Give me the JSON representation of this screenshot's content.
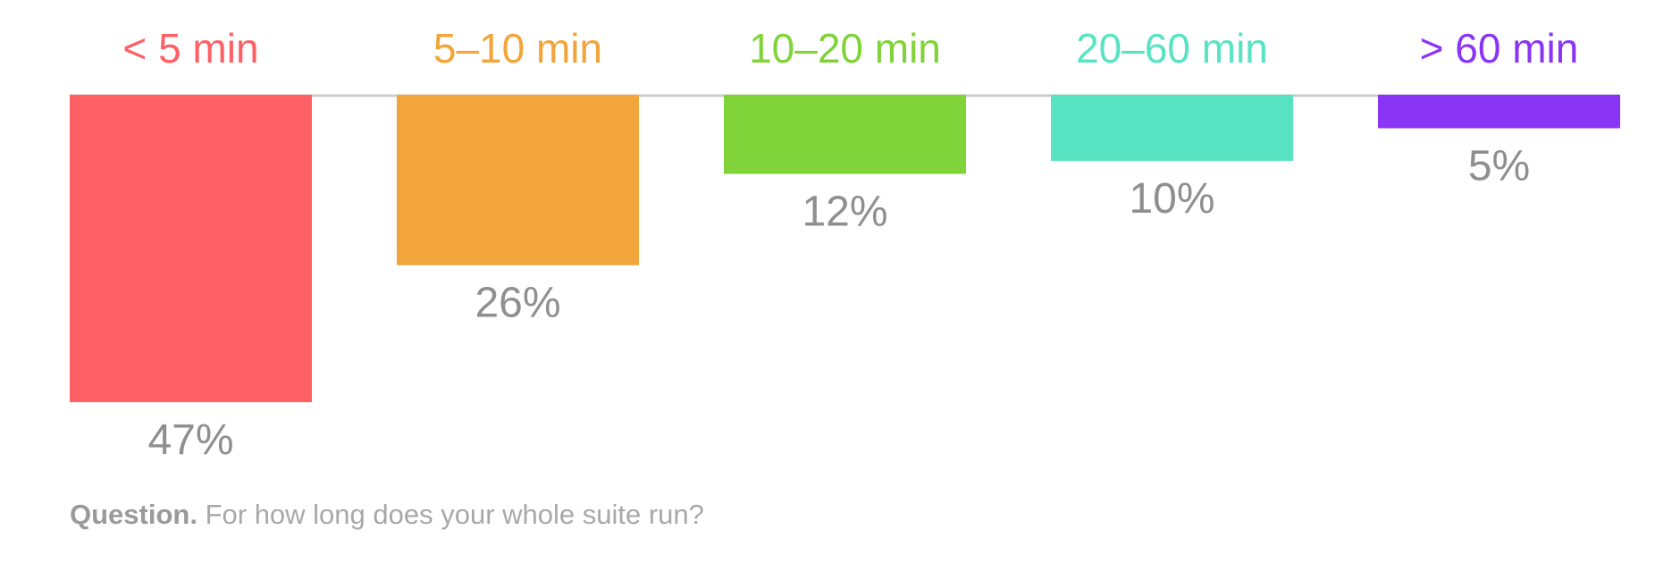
{
  "chart_data": {
    "type": "bar",
    "orientation": "vertical-downward",
    "categories": [
      "< 5 min",
      "5–10 min",
      "10–20 min",
      "20–60 min",
      "> 60 min"
    ],
    "values": [
      47,
      26,
      12,
      10,
      5
    ],
    "value_labels": [
      "47%",
      "26%",
      "12%",
      "10%",
      "5%"
    ],
    "unit": "%",
    "colors": [
      "#fe6065",
      "#f2a53a",
      "#80d339",
      "#58e3c2",
      "#8a34f5"
    ],
    "baseline_color": "#cccccc",
    "value_label_color": "#8f8f8f",
    "ylim": [
      0,
      47
    ],
    "grid": false,
    "legend": "none"
  },
  "caption": {
    "lead": "Question.",
    "text": "For how long does your whole suite run?"
  }
}
